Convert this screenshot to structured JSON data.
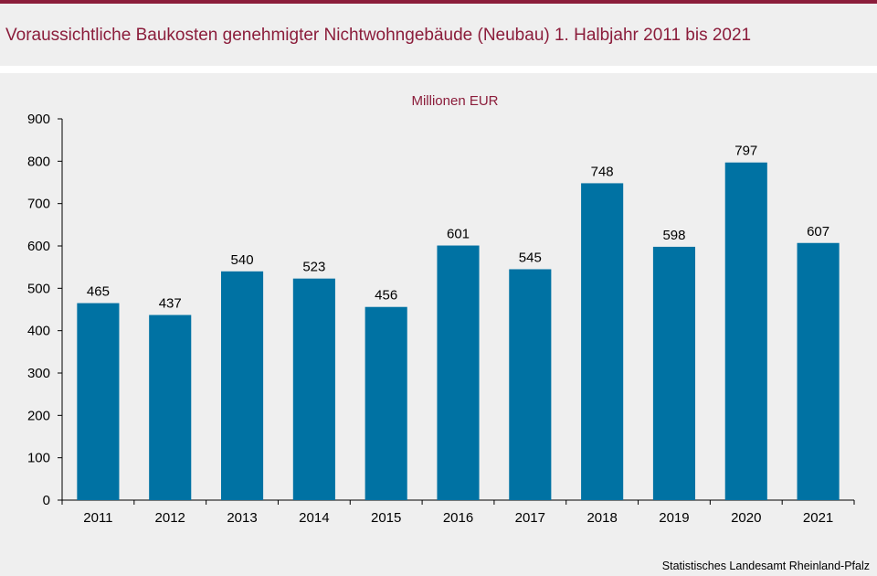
{
  "header": {
    "title": "Voraussichtliche Baukosten genehmigter Nichtwohngebäude (Neubau) 1. Halbjahr 2011 bis 2021"
  },
  "footer": {
    "source": "Statistisches Landesamt Rheinland-Pfalz"
  },
  "colors": {
    "accent": "#8b1d3b",
    "bar": "#0072a3",
    "background": "#efefef"
  },
  "chart_data": {
    "type": "bar",
    "unit_label": "Millionen EUR",
    "categories": [
      "2011",
      "2012",
      "2013",
      "2014",
      "2015",
      "2016",
      "2017",
      "2018",
      "2019",
      "2020",
      "2021"
    ],
    "values": [
      465,
      437,
      540,
      523,
      456,
      601,
      545,
      748,
      598,
      797,
      607
    ],
    "ylim": [
      0,
      900
    ],
    "yticks": [
      0,
      100,
      200,
      300,
      400,
      500,
      600,
      700,
      800,
      900
    ],
    "grid": false,
    "legend": "none"
  }
}
